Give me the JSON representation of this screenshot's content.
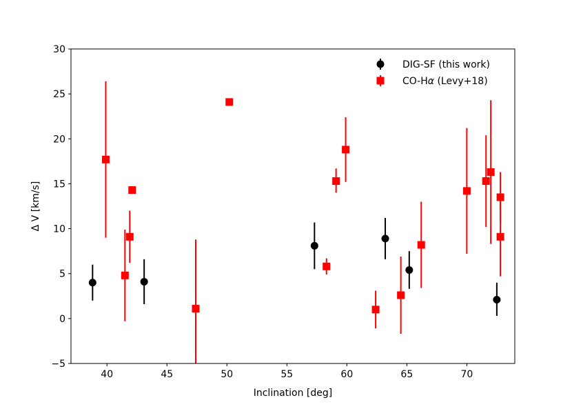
{
  "chart_data": {
    "type": "scatter",
    "xlabel": "Inclination [deg]",
    "ylabel": "Δ V [km/s]",
    "xlim": [
      37,
      74
    ],
    "ylim": [
      -5,
      30
    ],
    "xticks": [
      40,
      45,
      50,
      55,
      60,
      65,
      70
    ],
    "yticks": [
      -5,
      0,
      5,
      10,
      15,
      20,
      25,
      30
    ],
    "xtick_labels": [
      "40",
      "45",
      "50",
      "55",
      "60",
      "65",
      "70"
    ],
    "ytick_labels": [
      "−5",
      "0",
      "5",
      "10",
      "15",
      "20",
      "25",
      "30"
    ],
    "grid": false,
    "legend_position": "top-right",
    "series": [
      {
        "name": "DIG-SF (this work)",
        "marker": "circle",
        "color": "#000000",
        "points": [
          {
            "x": 38.8,
            "y": 4.0,
            "yerr_low": 2.0,
            "yerr_high": 6.0
          },
          {
            "x": 43.1,
            "y": 4.1,
            "yerr_low": 1.6,
            "yerr_high": 6.6
          },
          {
            "x": 57.3,
            "y": 8.1,
            "yerr_low": 5.5,
            "yerr_high": 10.7
          },
          {
            "x": 63.2,
            "y": 8.9,
            "yerr_low": 6.6,
            "yerr_high": 11.2
          },
          {
            "x": 65.2,
            "y": 5.4,
            "yerr_low": 3.3,
            "yerr_high": 7.5
          },
          {
            "x": 72.5,
            "y": 2.1,
            "yerr_low": 0.3,
            "yerr_high": 4.0
          }
        ]
      },
      {
        "name_prefix": "CO-H",
        "name_greek": "α",
        "name_suffix": " (Levy+18)",
        "marker": "square",
        "color": "#ff0000",
        "points": [
          {
            "x": 39.9,
            "y": 17.7,
            "yerr_low": 9.0,
            "yerr_high": 26.4
          },
          {
            "x": 41.5,
            "y": 4.8,
            "yerr_low": -0.3,
            "yerr_high": 9.9
          },
          {
            "x": 41.9,
            "y": 9.1,
            "yerr_low": 6.2,
            "yerr_high": 12.0
          },
          {
            "x": 42.1,
            "y": 14.3,
            "yerr_low": 14.0,
            "yerr_high": 14.6
          },
          {
            "x": 47.4,
            "y": 1.1,
            "yerr_low": -5.0,
            "yerr_high": 8.8
          },
          {
            "x": 50.2,
            "y": 24.1,
            "yerr_low": 24.1,
            "yerr_high": 24.1
          },
          {
            "x": 58.3,
            "y": 5.8,
            "yerr_low": 4.9,
            "yerr_high": 6.7
          },
          {
            "x": 59.1,
            "y": 15.3,
            "yerr_low": 14.0,
            "yerr_high": 16.7
          },
          {
            "x": 59.9,
            "y": 18.8,
            "yerr_low": 15.2,
            "yerr_high": 22.4
          },
          {
            "x": 62.4,
            "y": 1.0,
            "yerr_low": -1.1,
            "yerr_high": 3.1
          },
          {
            "x": 64.5,
            "y": 2.6,
            "yerr_low": -1.7,
            "yerr_high": 6.9
          },
          {
            "x": 66.2,
            "y": 8.2,
            "yerr_low": 3.4,
            "yerr_high": 13.0
          },
          {
            "x": 70.0,
            "y": 14.2,
            "yerr_low": 7.2,
            "yerr_high": 21.2
          },
          {
            "x": 71.6,
            "y": 15.3,
            "yerr_low": 10.2,
            "yerr_high": 20.4
          },
          {
            "x": 72.0,
            "y": 16.3,
            "yerr_low": 8.3,
            "yerr_high": 24.3
          },
          {
            "x": 72.8,
            "y": 13.5,
            "yerr_low": 10.7,
            "yerr_high": 16.3
          },
          {
            "x": 72.8,
            "y": 9.1,
            "yerr_low": 4.7,
            "yerr_high": 13.5
          }
        ]
      }
    ]
  }
}
